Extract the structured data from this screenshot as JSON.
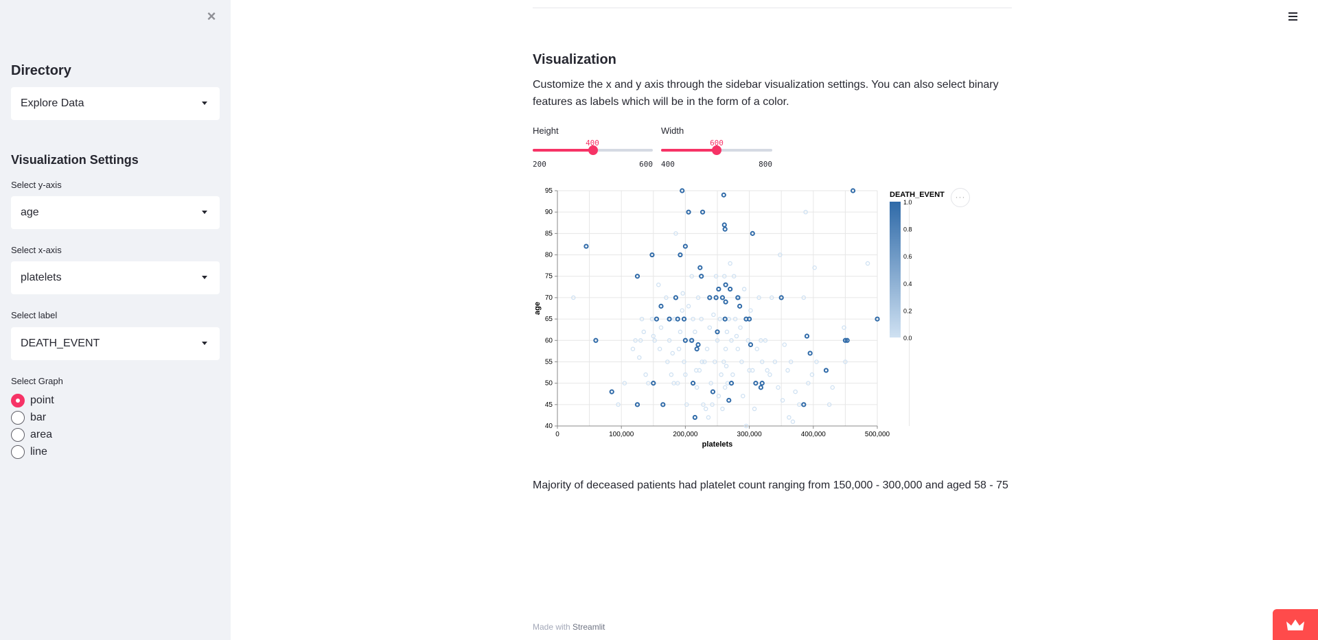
{
  "sidebar": {
    "close_icon": "close-icon",
    "directory_heading": "Directory",
    "directory_select": "Explore Data",
    "vis_heading": "Visualization Settings",
    "y_label": "Select y-axis",
    "y_value": "age",
    "x_label": "Select x-axis",
    "x_value": "platelets",
    "label_label": "Select label",
    "label_value": "DEATH_EVENT",
    "graph_label": "Select Graph",
    "graph_options": [
      "point",
      "bar",
      "area",
      "line"
    ],
    "graph_selected": "point"
  },
  "main": {
    "menu_icon": "hamburger-icon",
    "heading": "Visualization",
    "description": "Customize the x and y axis through the sidebar visualization settings. You can also select binary features as labels which will be in the form of a color.",
    "height_slider": {
      "label": "Height",
      "value": "400",
      "min": "200",
      "max": "600",
      "fraction": 0.5
    },
    "width_slider": {
      "label": "Width",
      "value": "600",
      "min": "400",
      "max": "800",
      "fraction": 0.5
    },
    "insight": "Majority of deceased patients had platelet count ranging from 150,000 - 300,000 and aged 58 - 75",
    "footer_prefix": "Made with",
    "footer_link": "Streamlit",
    "more_menu_label": "···"
  },
  "colors": {
    "accent": "#f63366",
    "sidebar_bg": "#f0f2f6",
    "series_low": "#cfe1f2",
    "series_high": "#2f6aa8",
    "badge": "#ff4b4b"
  },
  "chart_data": {
    "type": "scatter",
    "xlabel": "platelets",
    "ylabel": "age",
    "xlim": [
      0,
      500000
    ],
    "ylim": [
      40,
      95
    ],
    "xticks": [
      "0",
      "100,000",
      "200,000",
      "300,000",
      "400,000",
      "500,000"
    ],
    "yticks": [
      "40",
      "45",
      "50",
      "55",
      "60",
      "65",
      "70",
      "75",
      "80",
      "85",
      "90",
      "95"
    ],
    "legend_title": "DEATH_EVENT",
    "legend_ticks": [
      "1.0",
      "0.8",
      "0.6",
      "0.4",
      "0.2",
      "0.0"
    ],
    "legend_position": "right",
    "grid": true,
    "points_event": [
      [
        45000,
        82
      ],
      [
        60000,
        60
      ],
      [
        85000,
        48
      ],
      [
        125000,
        45
      ],
      [
        125000,
        75
      ],
      [
        148000,
        80
      ],
      [
        150000,
        50
      ],
      [
        155000,
        65
      ],
      [
        162000,
        68
      ],
      [
        165000,
        45
      ],
      [
        175000,
        65
      ],
      [
        185000,
        70
      ],
      [
        188000,
        65
      ],
      [
        192000,
        80
      ],
      [
        195000,
        95
      ],
      [
        198000,
        65
      ],
      [
        200000,
        60
      ],
      [
        200000,
        82
      ],
      [
        205000,
        90
      ],
      [
        210000,
        60
      ],
      [
        212000,
        50
      ],
      [
        215000,
        42
      ],
      [
        218000,
        58
      ],
      [
        220000,
        59
      ],
      [
        223000,
        77
      ],
      [
        225000,
        75
      ],
      [
        227000,
        90
      ],
      [
        238000,
        70
      ],
      [
        243000,
        48
      ],
      [
        248000,
        70
      ],
      [
        250000,
        62
      ],
      [
        252000,
        72
      ],
      [
        258000,
        70
      ],
      [
        260000,
        94
      ],
      [
        261000,
        87
      ],
      [
        262000,
        86
      ],
      [
        262000,
        65
      ],
      [
        263000,
        73
      ],
      [
        263000,
        69
      ],
      [
        268000,
        46
      ],
      [
        270000,
        72
      ],
      [
        272000,
        50
      ],
      [
        282000,
        70
      ],
      [
        285000,
        68
      ],
      [
        295000,
        65
      ],
      [
        300000,
        65
      ],
      [
        302000,
        59
      ],
      [
        305000,
        85
      ],
      [
        310000,
        50
      ],
      [
        318000,
        49
      ],
      [
        320000,
        50
      ],
      [
        350000,
        70
      ],
      [
        385000,
        45
      ],
      [
        390000,
        61
      ],
      [
        395000,
        57
      ],
      [
        420000,
        53
      ],
      [
        450000,
        60
      ],
      [
        453000,
        60
      ],
      [
        462000,
        95
      ],
      [
        500000,
        65
      ]
    ],
    "points_survived": [
      [
        25000,
        70
      ],
      [
        95000,
        45
      ],
      [
        105000,
        50
      ],
      [
        118000,
        58
      ],
      [
        122000,
        60
      ],
      [
        128000,
        56
      ],
      [
        130000,
        60
      ],
      [
        132000,
        65
      ],
      [
        135000,
        62
      ],
      [
        138000,
        52
      ],
      [
        142000,
        50
      ],
      [
        148000,
        65
      ],
      [
        150000,
        61
      ],
      [
        152000,
        60
      ],
      [
        158000,
        73
      ],
      [
        160000,
        58
      ],
      [
        162000,
        63
      ],
      [
        170000,
        70
      ],
      [
        172000,
        55
      ],
      [
        175000,
        60
      ],
      [
        178000,
        52
      ],
      [
        180000,
        57
      ],
      [
        182000,
        50
      ],
      [
        183000,
        65
      ],
      [
        185000,
        85
      ],
      [
        188000,
        50
      ],
      [
        190000,
        58
      ],
      [
        192000,
        62
      ],
      [
        195000,
        67
      ],
      [
        196000,
        71
      ],
      [
        198000,
        55
      ],
      [
        200000,
        52
      ],
      [
        202000,
        45
      ],
      [
        205000,
        68
      ],
      [
        208000,
        60
      ],
      [
        210000,
        75
      ],
      [
        212000,
        65
      ],
      [
        215000,
        62
      ],
      [
        217000,
        53
      ],
      [
        218000,
        49
      ],
      [
        220000,
        70
      ],
      [
        222000,
        53
      ],
      [
        225000,
        65
      ],
      [
        226000,
        55
      ],
      [
        228000,
        45
      ],
      [
        230000,
        55
      ],
      [
        232000,
        44
      ],
      [
        234000,
        58
      ],
      [
        236000,
        42
      ],
      [
        238000,
        63
      ],
      [
        240000,
        50
      ],
      [
        242000,
        45
      ],
      [
        244000,
        66
      ],
      [
        246000,
        55
      ],
      [
        248000,
        75
      ],
      [
        250000,
        60
      ],
      [
        252000,
        47
      ],
      [
        254000,
        65
      ],
      [
        256000,
        52
      ],
      [
        258000,
        44
      ],
      [
        260000,
        55
      ],
      [
        261000,
        75
      ],
      [
        262000,
        49
      ],
      [
        263000,
        58
      ],
      [
        264000,
        54
      ],
      [
        265000,
        62
      ],
      [
        266000,
        50
      ],
      [
        268000,
        65
      ],
      [
        270000,
        78
      ],
      [
        272000,
        60
      ],
      [
        274000,
        52
      ],
      [
        276000,
        75
      ],
      [
        278000,
        65
      ],
      [
        280000,
        61
      ],
      [
        282000,
        58
      ],
      [
        284000,
        70
      ],
      [
        286000,
        63
      ],
      [
        288000,
        55
      ],
      [
        290000,
        47
      ],
      [
        292000,
        72
      ],
      [
        295000,
        40
      ],
      [
        298000,
        60
      ],
      [
        300000,
        53
      ],
      [
        302000,
        67
      ],
      [
        305000,
        53
      ],
      [
        308000,
        44
      ],
      [
        312000,
        58
      ],
      [
        315000,
        70
      ],
      [
        318000,
        60
      ],
      [
        320000,
        55
      ],
      [
        325000,
        60
      ],
      [
        328000,
        53
      ],
      [
        332000,
        52
      ],
      [
        335000,
        70
      ],
      [
        340000,
        55
      ],
      [
        345000,
        49
      ],
      [
        348000,
        80
      ],
      [
        352000,
        46
      ],
      [
        355000,
        59
      ],
      [
        360000,
        53
      ],
      [
        362000,
        42
      ],
      [
        365000,
        55
      ],
      [
        368000,
        41
      ],
      [
        372000,
        48
      ],
      [
        378000,
        45
      ],
      [
        385000,
        70
      ],
      [
        388000,
        90
      ],
      [
        392000,
        50
      ],
      [
        398000,
        52
      ],
      [
        402000,
        77
      ],
      [
        405000,
        55
      ],
      [
        425000,
        45
      ],
      [
        430000,
        49
      ],
      [
        450000,
        55
      ],
      [
        448000,
        63
      ],
      [
        485000,
        78
      ]
    ]
  }
}
